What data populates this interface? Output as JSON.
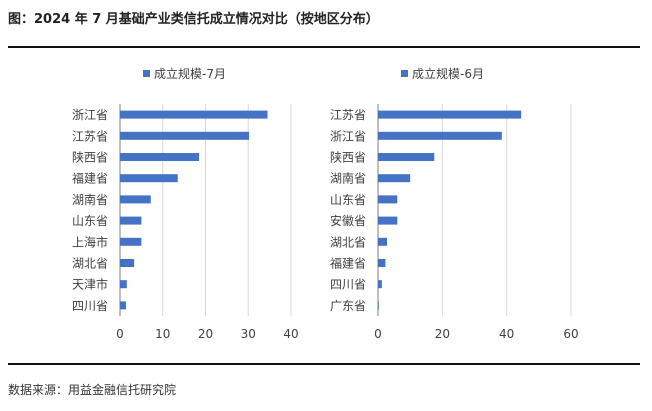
{
  "figure_title": "图：2024 年 7 月基础产业类信托成立情况对比（按地区分布）",
  "source": "数据来源：用益金融信托研究院",
  "colors": {
    "bar": "#4472C4",
    "grid": "#d9d9d9",
    "axis": "#7f7f7f",
    "text": "#404040",
    "rule": "#111111"
  },
  "chart_data": [
    {
      "type": "bar",
      "orientation": "horizontal",
      "legend": "成立规模-7月",
      "legend_position": "top",
      "categories": [
        "浙江省",
        "江苏省",
        "陕西省",
        "福建省",
        "湖南省",
        "山东省",
        "上海市",
        "湖北省",
        "天津市",
        "四川省"
      ],
      "values": [
        34.5,
        30.2,
        18.5,
        13.5,
        7.2,
        5.0,
        5.0,
        3.3,
        1.6,
        1.4
      ],
      "xlim": [
        0,
        40
      ],
      "xticks": [
        0,
        10,
        20,
        30,
        40
      ],
      "grid": "vertical"
    },
    {
      "type": "bar",
      "orientation": "horizontal",
      "legend": "成立规模-6月",
      "legend_position": "top",
      "categories": [
        "江苏省",
        "浙江省",
        "陕西省",
        "湖南省",
        "山东省",
        "安徽省",
        "湖北省",
        "福建省",
        "四川省",
        "广东省"
      ],
      "values": [
        44.5,
        38.5,
        17.5,
        10.0,
        6.0,
        6.0,
        2.8,
        2.3,
        1.2,
        0.2
      ],
      "xlim": [
        0,
        60
      ],
      "xticks": [
        0,
        20,
        40,
        60
      ],
      "grid": "vertical"
    }
  ]
}
